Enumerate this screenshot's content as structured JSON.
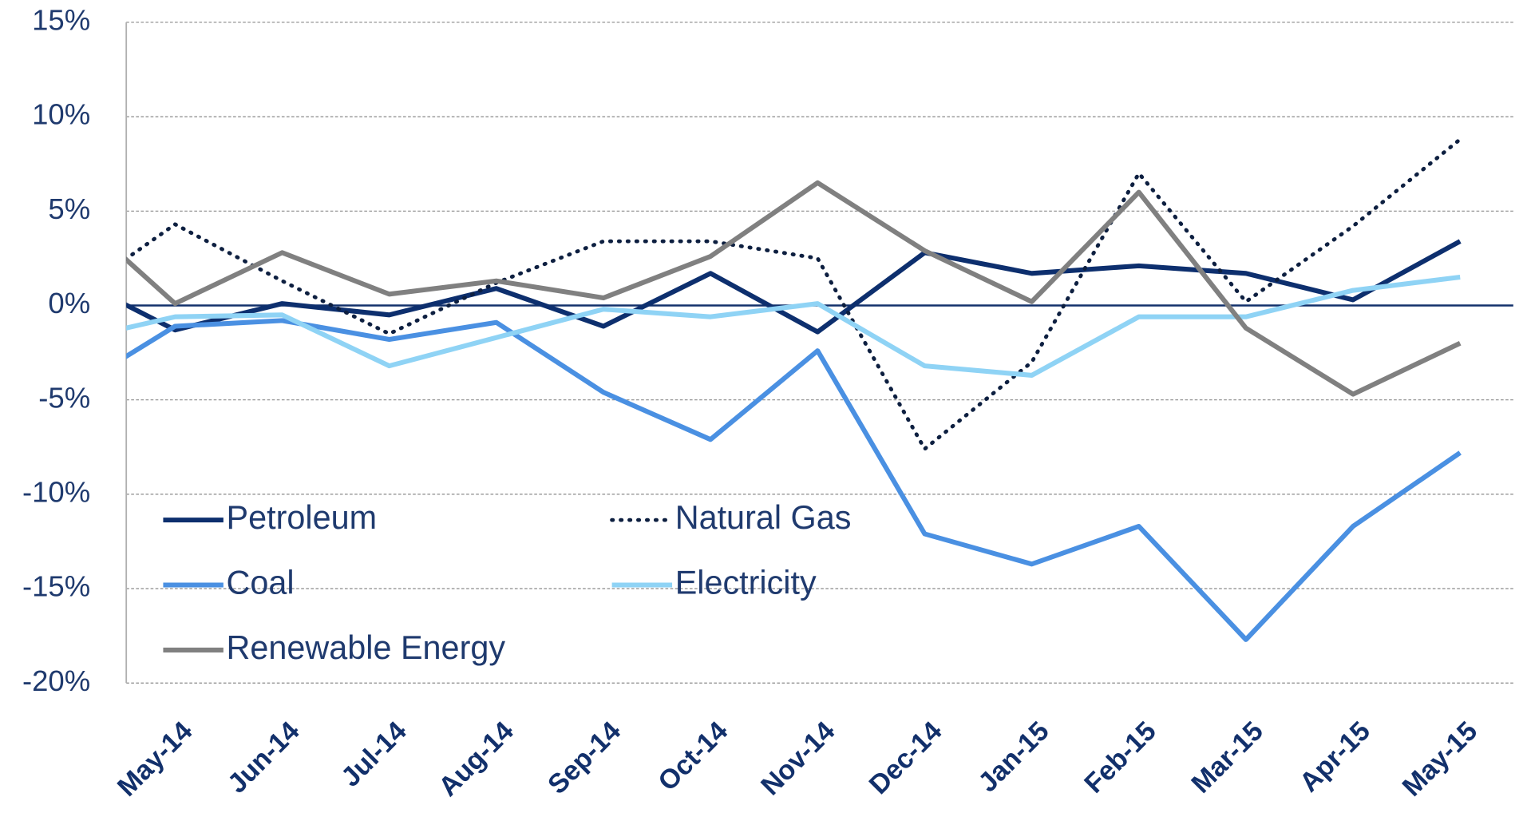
{
  "chart_data": {
    "type": "line",
    "categories": [
      null,
      "May-14",
      "Jun-14",
      "Jul-14",
      "Aug-14",
      "Sep-14",
      "Oct-14",
      "Nov-14",
      "Dec-14",
      "Jan-15",
      "Feb-15",
      "Mar-15",
      "Apr-15",
      "May-15"
    ],
    "series": [
      {
        "name": "Petroleum",
        "color": "#0d2f6e",
        "values": [
          1.6,
          -1.3,
          0.1,
          -0.5,
          0.9,
          -1.1,
          1.7,
          -1.4,
          2.8,
          1.7,
          2.1,
          1.7,
          0.3,
          3.4
        ]
      },
      {
        "name": "Natural Gas",
        "color": "#0d1f40",
        "dash": "dotted",
        "values": [
          0.3,
          4.3,
          1.3,
          -1.5,
          1.2,
          3.4,
          3.4,
          2.5,
          -7.6,
          -3.0,
          7.0,
          0.2,
          4.2,
          8.8
        ]
      },
      {
        "name": "Coal",
        "color": "#4a90e2",
        "values": [
          -4.6,
          -1.1,
          -0.8,
          -1.8,
          -0.9,
          -4.6,
          -7.1,
          -2.4,
          -12.1,
          -13.7,
          -11.7,
          -17.7,
          -11.7,
          -7.8
        ]
      },
      {
        "name": "Electricity",
        "color": "#8fd3f5",
        "values": [
          -1.9,
          -0.6,
          -0.5,
          -3.2,
          -1.7,
          -0.2,
          -0.6,
          0.1,
          -3.2,
          -3.7,
          -0.6,
          -0.6,
          0.8,
          1.5
        ]
      },
      {
        "name": "Renewable Energy",
        "color": "#808080",
        "values": [
          5.2,
          0.1,
          2.8,
          0.6,
          1.3,
          0.4,
          2.6,
          6.5,
          2.9,
          0.2,
          6.0,
          -1.2,
          -4.7,
          -2.0
        ]
      }
    ],
    "ylim": [
      -20,
      15
    ],
    "yticks": [
      {
        "value": 15,
        "label": "15%"
      },
      {
        "value": 10,
        "label": "10%"
      },
      {
        "value": 5,
        "label": "5%"
      },
      {
        "value": 0,
        "label": "0%"
      },
      {
        "value": -5,
        "label": "-5%"
      },
      {
        "value": -10,
        "label": "-10%"
      },
      {
        "value": -15,
        "label": "-15%"
      },
      {
        "value": -20,
        "label": "-20%"
      }
    ],
    "grid": true,
    "legend": "lower left"
  }
}
